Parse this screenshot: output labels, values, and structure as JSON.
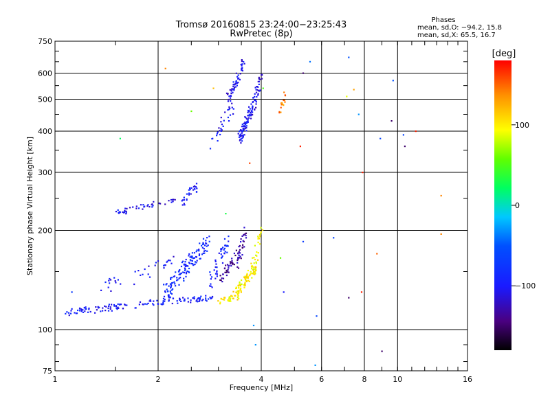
{
  "chart_data": {
    "type": "scatter",
    "title": "Tromsø 20160815 23:24:00−23:25:43",
    "subtitle": "RwPretec (8p)",
    "xlabel": "Frequency [MHz]",
    "ylabel": "Stationary phase Virtual Height [km]",
    "x_scale": "log2",
    "y_scale": "log",
    "xlim": [
      1,
      16
    ],
    "ylim": [
      75,
      750
    ],
    "x_ticks": [
      1,
      2,
      4,
      6,
      8,
      10,
      16
    ],
    "x_tick_labels": [
      "1",
      "2",
      "4",
      "6",
      "8",
      "10",
      "16"
    ],
    "y_ticks": [
      75,
      100,
      200,
      300,
      400,
      500,
      600,
      750
    ],
    "y_tick_labels": [
      "75",
      "100",
      "200",
      "300",
      "400",
      "500",
      "600",
      "750"
    ],
    "grid": true,
    "stats": {
      "heading": "Phases",
      "line_o": "mean, sd,O: −94.2, 15.8",
      "line_x": "mean, sd,X:  65.5, 16.7"
    },
    "colorbar": {
      "label": "[deg]",
      "range": [
        -180,
        180
      ],
      "ticks": [
        100,
        0,
        -100
      ],
      "tick_labels": [
        "100",
        "0",
        "−100"
      ]
    },
    "traces": [
      {
        "from": [
          1.05,
          112
        ],
        "to": [
          1.8,
          120
        ],
        "phase": -100,
        "spread": 0.025,
        "n": 70
      },
      {
        "from": [
          1.8,
          120
        ],
        "to": [
          2.9,
          125
        ],
        "phase": -95,
        "spread": 0.02,
        "n": 70
      },
      {
        "from": [
          1.3,
          130
        ],
        "to": [
          2.2,
          160
        ],
        "phase": -100,
        "spread": 0.05,
        "n": 35
      },
      {
        "from": [
          2.1,
          130
        ],
        "to": [
          2.8,
          185
        ],
        "phase": -85,
        "spread": 0.06,
        "n": 140
      },
      {
        "from": [
          2.8,
          135
        ],
        "to": [
          3.2,
          185
        ],
        "phase": -90,
        "spread": 0.05,
        "n": 45
      },
      {
        "from": [
          3.0,
          140
        ],
        "to": [
          3.5,
          175
        ],
        "phase": -135,
        "spread": 0.04,
        "n": 45
      },
      {
        "from": [
          3.4,
          155
        ],
        "to": [
          3.6,
          200
        ],
        "phase": -130,
        "spread": 0.04,
        "n": 30
      },
      {
        "from": [
          3.0,
          122
        ],
        "to": [
          3.45,
          126
        ],
        "phase": 100,
        "spread": 0.02,
        "n": 30
      },
      {
        "from": [
          3.35,
          128
        ],
        "to": [
          3.9,
          160
        ],
        "phase": 100,
        "spread": 0.04,
        "n": 90
      },
      {
        "from": [
          3.8,
          160
        ],
        "to": [
          4.0,
          200
        ],
        "phase": 100,
        "spread": 0.04,
        "n": 20
      },
      {
        "from": [
          1.5,
          225
        ],
        "to": [
          1.95,
          240
        ],
        "phase": -105,
        "spread": 0.02,
        "n": 35
      },
      {
        "from": [
          2.0,
          238
        ],
        "to": [
          2.25,
          245
        ],
        "phase": -110,
        "spread": 0.02,
        "n": 10
      },
      {
        "from": [
          2.35,
          240
        ],
        "to": [
          2.6,
          275
        ],
        "phase": -100,
        "spread": 0.04,
        "n": 30
      },
      {
        "from": [
          2.85,
          360
        ],
        "to": [
          3.3,
          480
        ],
        "phase": -100,
        "spread": 0.05,
        "n": 30
      },
      {
        "from": [
          3.2,
          500
        ],
        "to": [
          3.55,
          640
        ],
        "phase": -105,
        "spread": 0.04,
        "n": 55
      },
      {
        "from": [
          3.45,
          380
        ],
        "to": [
          3.75,
          470
        ],
        "phase": -100,
        "spread": 0.04,
        "n": 80
      },
      {
        "from": [
          3.75,
          450
        ],
        "to": [
          4.0,
          600
        ],
        "phase": -110,
        "spread": 0.04,
        "n": 45
      },
      {
        "from": [
          4.5,
          460
        ],
        "to": [
          4.7,
          510
        ],
        "phase": 140,
        "spread": 0.03,
        "n": 15
      }
    ],
    "scatter_points": [
      {
        "x": 1.12,
        "y": 130,
        "phase": -70
      },
      {
        "x": 1.55,
        "y": 380,
        "phase": 20
      },
      {
        "x": 2.1,
        "y": 620,
        "phase": 140
      },
      {
        "x": 2.5,
        "y": 460,
        "phase": 60
      },
      {
        "x": 2.9,
        "y": 540,
        "phase": 120
      },
      {
        "x": 3.15,
        "y": 225,
        "phase": 30
      },
      {
        "x": 3.7,
        "y": 320,
        "phase": 160
      },
      {
        "x": 4.05,
        "y": 540,
        "phase": 50
      },
      {
        "x": 4.65,
        "y": 130,
        "phase": -100
      },
      {
        "x": 4.55,
        "y": 165,
        "phase": 60
      },
      {
        "x": 5.3,
        "y": 600,
        "phase": -150
      },
      {
        "x": 5.55,
        "y": 650,
        "phase": -40
      },
      {
        "x": 5.2,
        "y": 360,
        "phase": 170
      },
      {
        "x": 5.3,
        "y": 185,
        "phase": -70
      },
      {
        "x": 5.8,
        "y": 110,
        "phase": -60
      },
      {
        "x": 6.5,
        "y": 190,
        "phase": -60
      },
      {
        "x": 7.2,
        "y": 670,
        "phase": -50
      },
      {
        "x": 7.1,
        "y": 510,
        "phase": 90
      },
      {
        "x": 7.45,
        "y": 535,
        "phase": 130
      },
      {
        "x": 7.7,
        "y": 450,
        "phase": -30
      },
      {
        "x": 7.9,
        "y": 300,
        "phase": 170
      },
      {
        "x": 7.85,
        "y": 130,
        "phase": 170
      },
      {
        "x": 7.2,
        "y": 125,
        "phase": -150
      },
      {
        "x": 8.9,
        "y": 380,
        "phase": -60
      },
      {
        "x": 8.7,
        "y": 170,
        "phase": 150
      },
      {
        "x": 9.0,
        "y": 86,
        "phase": -150
      },
      {
        "x": 9.7,
        "y": 570,
        "phase": -50
      },
      {
        "x": 9.6,
        "y": 430,
        "phase": -150
      },
      {
        "x": 10.4,
        "y": 390,
        "phase": -60
      },
      {
        "x": 10.5,
        "y": 360,
        "phase": -150
      },
      {
        "x": 11.3,
        "y": 400,
        "phase": 170
      },
      {
        "x": 13.4,
        "y": 255,
        "phase": 140
      },
      {
        "x": 13.4,
        "y": 195,
        "phase": 140
      },
      {
        "x": 3.85,
        "y": 90,
        "phase": -30
      },
      {
        "x": 5.75,
        "y": 78,
        "phase": -30
      },
      {
        "x": 3.8,
        "y": 103,
        "phase": -30
      }
    ]
  }
}
